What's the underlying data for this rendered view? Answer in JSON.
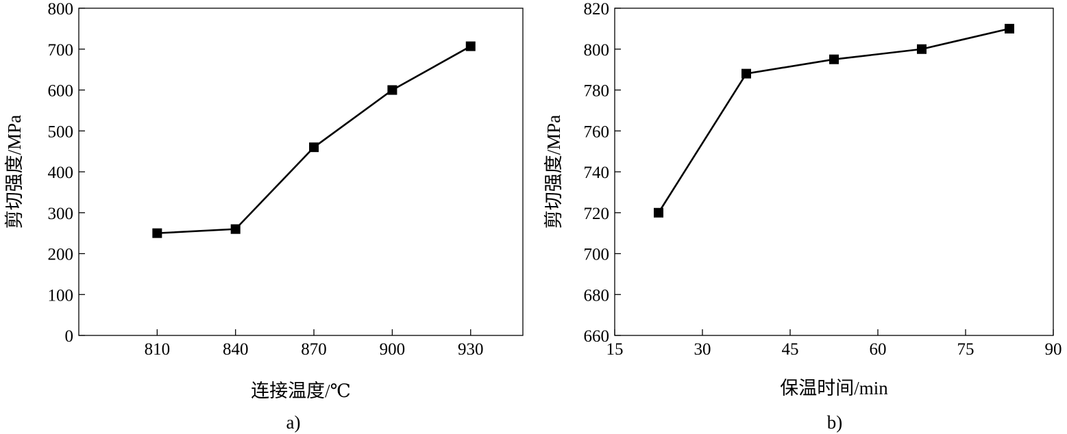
{
  "chart_data": [
    {
      "type": "line",
      "panel_label": "a)",
      "xlabel": "连接温度/℃",
      "ylabel": "剪切强度/MPa",
      "x_ticks": [
        810,
        840,
        870,
        900,
        930
      ],
      "y_ticks": [
        0,
        100,
        200,
        300,
        400,
        500,
        600,
        700,
        800
      ],
      "xlim": [
        780,
        950
      ],
      "ylim": [
        0,
        800
      ],
      "grid": false,
      "marker": "square",
      "series": [
        {
          "x": [
            810,
            840,
            870,
            900,
            930
          ],
          "y": [
            250,
            260,
            460,
            600,
            707
          ]
        }
      ]
    },
    {
      "type": "line",
      "panel_label": "b)",
      "xlabel": "保温时间/min",
      "ylabel": "剪切强度/MPa",
      "x_ticks": [
        15,
        30,
        45,
        60,
        75,
        90
      ],
      "y_ticks": [
        660,
        680,
        700,
        720,
        740,
        760,
        780,
        800,
        820
      ],
      "xlim": [
        15,
        90
      ],
      "ylim": [
        660,
        820
      ],
      "grid": false,
      "marker": "square",
      "series": [
        {
          "x": [
            22.5,
            37.5,
            52.5,
            67.5,
            82.5
          ],
          "y": [
            720,
            788,
            795,
            800,
            810
          ]
        }
      ]
    }
  ]
}
